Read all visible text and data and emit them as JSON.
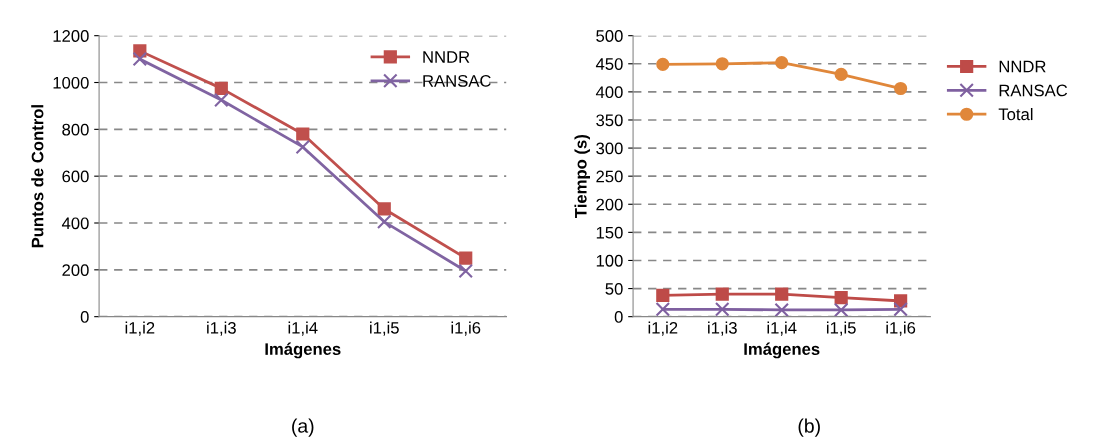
{
  "chart_data": [
    {
      "type": "line",
      "xlabel": "Imágenes",
      "ylabel": "Puntos de Control",
      "categories": [
        "i1,i2",
        "i1,i3",
        "i1,i4",
        "i1,i5",
        "i1,i6"
      ],
      "series": [
        {
          "name": "NNDR",
          "color": "#c0504d",
          "marker": "square",
          "values": [
            1135,
            975,
            780,
            460,
            250
          ]
        },
        {
          "name": "RANSAC",
          "color": "#8064a2",
          "marker": "cross",
          "values": [
            1100,
            925,
            725,
            405,
            195
          ]
        }
      ],
      "ylim": [
        0,
        1200
      ],
      "yticks": [
        0,
        200,
        400,
        600,
        800,
        1000,
        1200
      ],
      "grid": "y",
      "legend": "top right",
      "annotations": [
        "(a)"
      ]
    },
    {
      "type": "line",
      "xlabel": "Imágenes",
      "ylabel": "Tiempo (s)",
      "categories": [
        "i1,i2",
        "i1,i3",
        "i1,i4",
        "i1,i5",
        "i1,i6"
      ],
      "series": [
        {
          "name": "NNDR",
          "color": "#be4b48",
          "marker": "square",
          "values": [
            38,
            40,
            40,
            34,
            28
          ]
        },
        {
          "name": "RANSAC",
          "color": "#7f60a0",
          "marker": "cross",
          "values": [
            13,
            13,
            12,
            12,
            13
          ]
        },
        {
          "name": "Total",
          "color": "#e0873a",
          "marker": "circle",
          "values": [
            449,
            450,
            452,
            431,
            406
          ]
        }
      ],
      "ylim": [
        0,
        500
      ],
      "yticks": [
        0,
        50,
        100,
        150,
        200,
        250,
        300,
        350,
        400,
        450,
        500
      ],
      "grid": "y",
      "legend": "right",
      "annotations": [
        "(b)"
      ]
    }
  ]
}
